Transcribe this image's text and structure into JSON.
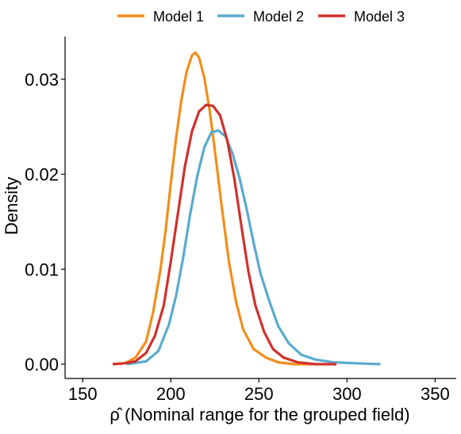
{
  "chart_data": {
    "type": "line",
    "title": "",
    "xlabel": "ρ̂ (Nominal range for the grouped field)",
    "ylabel": "Density",
    "xlim": [
      140,
      362
    ],
    "ylim": [
      -0.0015,
      0.0345
    ],
    "x_ticks": [
      150,
      200,
      250,
      300,
      350
    ],
    "x_tick_labels": [
      "150",
      "200",
      "250",
      "300",
      "350"
    ],
    "y_ticks": [
      0.0,
      0.01,
      0.02,
      0.03
    ],
    "y_tick_labels": [
      "0.00",
      "0.01",
      "0.02",
      "0.03"
    ],
    "grid": false,
    "legend_position": "top",
    "series": [
      {
        "name": "Model 1",
        "color": "#F28E1C",
        "points": [
          [
            167,
            0.0
          ],
          [
            174,
            0.0001
          ],
          [
            180,
            0.0007
          ],
          [
            186,
            0.0024
          ],
          [
            190,
            0.0055
          ],
          [
            194,
            0.0098
          ],
          [
            197,
            0.014
          ],
          [
            200,
            0.019
          ],
          [
            203,
            0.0238
          ],
          [
            206,
            0.0278
          ],
          [
            209,
            0.0308
          ],
          [
            212,
            0.0325
          ],
          [
            214,
            0.0328
          ],
          [
            216,
            0.0323
          ],
          [
            219,
            0.0302
          ],
          [
            222,
            0.0268
          ],
          [
            225,
            0.0225
          ],
          [
            229,
            0.0165
          ],
          [
            233,
            0.0108
          ],
          [
            237,
            0.0066
          ],
          [
            241,
            0.0037
          ],
          [
            247,
            0.0016
          ],
          [
            254,
            0.0007
          ],
          [
            261,
            0.0002
          ],
          [
            270,
            0.0
          ],
          [
            280,
            0.0
          ]
        ]
      },
      {
        "name": "Model 2",
        "color": "#5AABCE",
        "points": [
          [
            175,
            0.0
          ],
          [
            186,
            0.0003
          ],
          [
            193,
            0.0014
          ],
          [
            199,
            0.0042
          ],
          [
            203,
            0.0072
          ],
          [
            207,
            0.0112
          ],
          [
            211,
            0.0158
          ],
          [
            215,
            0.0198
          ],
          [
            219,
            0.0228
          ],
          [
            223,
            0.0244
          ],
          [
            227,
            0.0246
          ],
          [
            231,
            0.024
          ],
          [
            235,
            0.0222
          ],
          [
            239,
            0.0196
          ],
          [
            243,
            0.0164
          ],
          [
            247,
            0.0128
          ],
          [
            251,
            0.0095
          ],
          [
            256,
            0.0066
          ],
          [
            261,
            0.004
          ],
          [
            267,
            0.0022
          ],
          [
            274,
            0.001
          ],
          [
            282,
            0.0005
          ],
          [
            292,
            0.0002
          ],
          [
            305,
            0.0001
          ],
          [
            319,
            0.0
          ]
        ]
      },
      {
        "name": "Model 3",
        "color": "#D0312D",
        "points": [
          [
            167,
            0.0
          ],
          [
            174,
            0.0001
          ],
          [
            180,
            0.0003
          ],
          [
            186,
            0.0012
          ],
          [
            191,
            0.003
          ],
          [
            196,
            0.0062
          ],
          [
            200,
            0.0108
          ],
          [
            204,
            0.0158
          ],
          [
            208,
            0.0208
          ],
          [
            212,
            0.0245
          ],
          [
            216,
            0.0266
          ],
          [
            220,
            0.0273
          ],
          [
            224,
            0.0272
          ],
          [
            228,
            0.0262
          ],
          [
            232,
            0.0236
          ],
          [
            236,
            0.0196
          ],
          [
            240,
            0.0146
          ],
          [
            244,
            0.0098
          ],
          [
            248,
            0.0062
          ],
          [
            253,
            0.0034
          ],
          [
            258,
            0.0016
          ],
          [
            264,
            0.0007
          ],
          [
            272,
            0.0002
          ],
          [
            282,
            0.0
          ],
          [
            294,
            0.0
          ]
        ]
      }
    ]
  }
}
